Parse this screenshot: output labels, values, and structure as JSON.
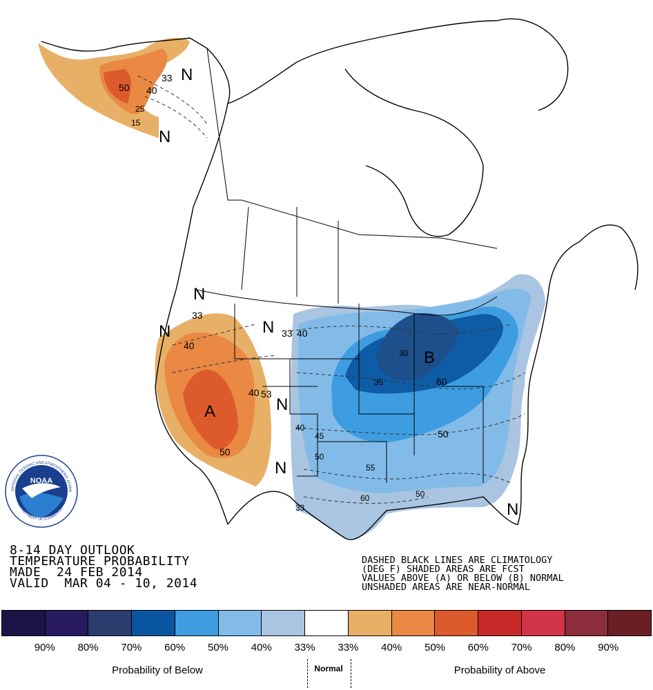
{
  "title_lines": [
    "8-14 DAY OUTLOOK",
    "TEMPERATURE PROBABILITY",
    "MADE  24 FEB 2014",
    "VALID  MAR 04 - 10, 2014"
  ],
  "notes": [
    "DASHED BLACK LINES ARE CLIMATOLOGY",
    "(DEG F) SHADED AREAS ARE FCST",
    "VALUES ABOVE (A) OR BELOW (B) NORMAL",
    "UNSHADED AREAS ARE NEAR-NORMAL"
  ],
  "legend": {
    "colors": [
      "#1c1446",
      "#271a5e",
      "#2b3c6e",
      "#0a55a0",
      "#3d9de0",
      "#82bbe8",
      "#a9c5e2",
      "#ffffff",
      "#e8b066",
      "#e98943",
      "#dd5a2d",
      "#c82a2a",
      "#d13447",
      "#8b2d3a",
      "#6b1f25"
    ],
    "ticks": [
      "90%",
      "80%",
      "70%",
      "60%",
      "50%",
      "40%",
      "33%",
      "33%",
      "40%",
      "50%",
      "60%",
      "70%",
      "80%",
      "90%"
    ],
    "below_label": "Probability of Below",
    "normal_label": "Normal",
    "above_label": "Probability of Above"
  },
  "map_labels": {
    "n": "N",
    "a": "A",
    "b": "B",
    "contours": [
      "50",
      "40",
      "33",
      "25",
      "15",
      "40",
      "33",
      "33",
      "40",
      "50",
      "40",
      "53",
      "30",
      "35",
      "60",
      "50",
      "45",
      "40",
      "50",
      "55",
      "60",
      "50",
      "33"
    ]
  },
  "logo": {
    "text": "NOAA",
    "ring_top": "NATIONAL OCEANIC AND ATMOSPHERIC ADMINISTRATION",
    "ring_bottom": "U.S. DEPARTMENT OF COMMERCE"
  }
}
